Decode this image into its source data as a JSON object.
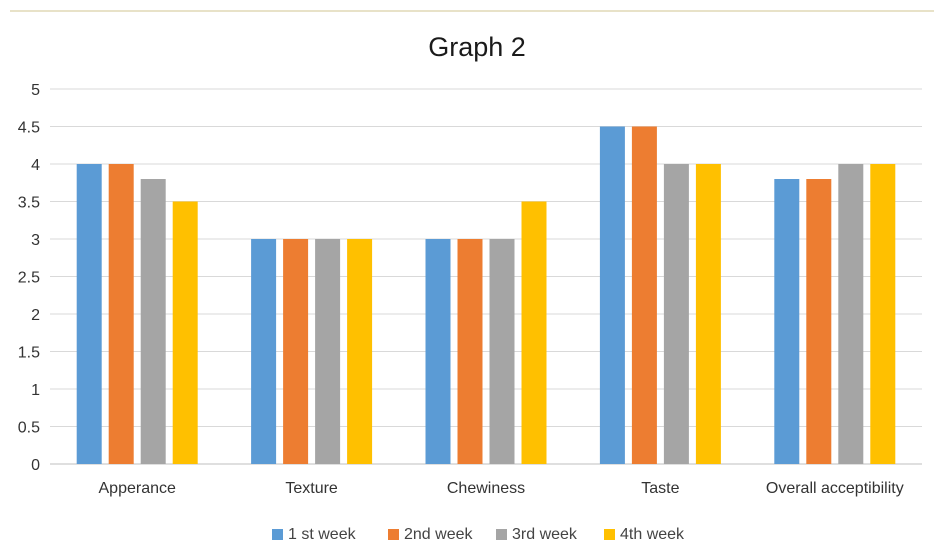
{
  "chart_data": {
    "type": "bar",
    "title": "Graph 2",
    "categories": [
      "Apperance",
      "Texture",
      "Chewiness",
      "Taste",
      "Overall acceptibility"
    ],
    "series": [
      {
        "name": "1 st week",
        "color": "#5b9bd5",
        "values": [
          4,
          3,
          3,
          4.5,
          3.8
        ]
      },
      {
        "name": "2nd week",
        "color": "#ed7d31",
        "values": [
          4,
          3,
          3,
          4.5,
          3.8
        ]
      },
      {
        "name": "3rd week",
        "color": "#a5a5a5",
        "values": [
          3.8,
          3,
          3,
          4,
          4
        ]
      },
      {
        "name": "4th week",
        "color": "#ffc000",
        "values": [
          3.5,
          3,
          3.5,
          4,
          4
        ]
      }
    ],
    "ylim": [
      0,
      5
    ],
    "yticks": [
      "0",
      "0.5",
      "1",
      "1.5",
      "2",
      "2.5",
      "3",
      "3.5",
      "4",
      "4.5",
      "5"
    ],
    "grid": true,
    "legend_position": "bottom"
  }
}
